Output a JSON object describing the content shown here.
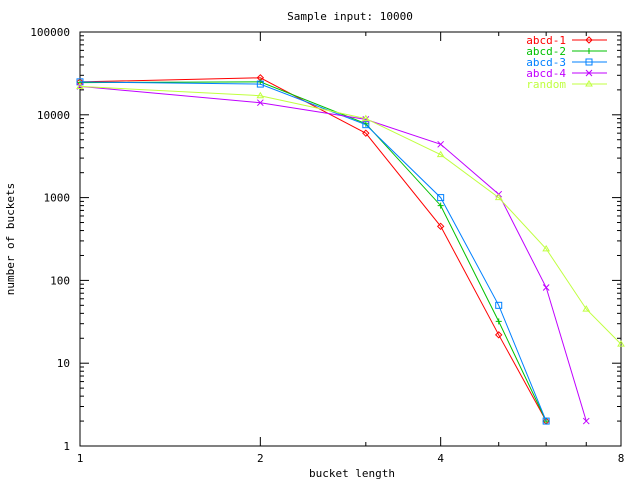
{
  "chart_data": {
    "type": "line",
    "title": "Sample input: 10000",
    "xlabel": "bucket length",
    "ylabel": "number of buckets",
    "xscale": "log2",
    "yscale": "log10",
    "xlim": [
      1,
      8
    ],
    "ylim": [
      1,
      100000
    ],
    "xticks": [
      1,
      2,
      4,
      8
    ],
    "xtick_labels": [
      "1",
      "2",
      "4",
      "8"
    ],
    "yticks": [
      1,
      10,
      100,
      1000,
      10000,
      100000
    ],
    "ytick_labels": [
      "1",
      "10",
      "100",
      "1000",
      "10000",
      "100000"
    ],
    "grid": false,
    "legend_position": "top-right",
    "series": [
      {
        "name": "abcd-1",
        "color": "#ff0000",
        "marker": "diamond",
        "x": [
          1,
          2,
          3,
          4,
          5,
          6
        ],
        "y": [
          25000,
          28000,
          6000,
          450,
          22,
          2
        ]
      },
      {
        "name": "abcd-2",
        "color": "#00c000",
        "marker": "plus",
        "x": [
          1,
          2,
          3,
          4,
          5,
          6
        ],
        "y": [
          24500,
          25000,
          7800,
          800,
          32,
          2
        ]
      },
      {
        "name": "abcd-3",
        "color": "#0080ff",
        "marker": "square",
        "x": [
          1,
          2,
          3,
          4,
          5,
          6
        ],
        "y": [
          25000,
          23500,
          7600,
          1000,
          50,
          2
        ]
      },
      {
        "name": "abcd-4",
        "color": "#c000ff",
        "marker": "x",
        "x": [
          1,
          2,
          3,
          4,
          5,
          6,
          7
        ],
        "y": [
          22000,
          14000,
          8800,
          4400,
          1100,
          82,
          2
        ]
      },
      {
        "name": "random",
        "color": "#c0ff40",
        "marker": "triangle",
        "x": [
          1,
          2,
          3,
          4,
          5,
          6,
          7,
          8
        ],
        "y": [
          22000,
          17000,
          9000,
          3300,
          1000,
          240,
          45,
          17
        ]
      }
    ]
  }
}
